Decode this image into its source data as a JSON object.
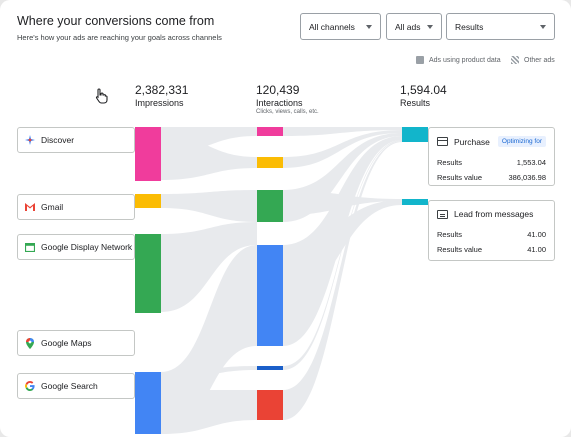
{
  "header": {
    "title": "Where your conversions come from",
    "subtitle": "Here's how your ads are reaching your goals across channels"
  },
  "filters": [
    {
      "value": "All channels"
    },
    {
      "value": "All ads"
    },
    {
      "value": "Results"
    }
  ],
  "legend": {
    "product_data": "Ads using product data",
    "other_ads": "Other ads"
  },
  "metrics": {
    "impressions": {
      "value": "2,382,331",
      "label": "Impressions"
    },
    "interactions": {
      "value": "120,439",
      "label": "Interactions",
      "sub": "Clicks, views, calls, etc."
    },
    "results": {
      "value": "1,594.04",
      "label": "Results"
    }
  },
  "channels": [
    {
      "name": "Discover",
      "icon": "discover-icon"
    },
    {
      "name": "Gmail",
      "icon": "gmail-icon"
    },
    {
      "name": "Google Display Network",
      "icon": "display-network-icon"
    },
    {
      "name": "Google Maps",
      "icon": "maps-pin-icon"
    },
    {
      "name": "Google Search",
      "icon": "google-g-icon"
    }
  ],
  "results": [
    {
      "name": "Purchase",
      "badge": "Optimizing for",
      "rows": [
        {
          "label": "Results",
          "value": "1,553.04"
        },
        {
          "label": "Results value",
          "value": "386,036.98"
        }
      ]
    },
    {
      "name": "Lead from messages",
      "rows": [
        {
          "label": "Results",
          "value": "41.00"
        },
        {
          "label": "Results value",
          "value": "41.00"
        }
      ]
    }
  ],
  "colors": {
    "discover": "#f03c9c",
    "gmail": "#fbbc04",
    "display": "#34a853",
    "search": "#4285f4",
    "red": "#ea4335",
    "results": "#12b5cb",
    "flow": "#e8eaed"
  }
}
